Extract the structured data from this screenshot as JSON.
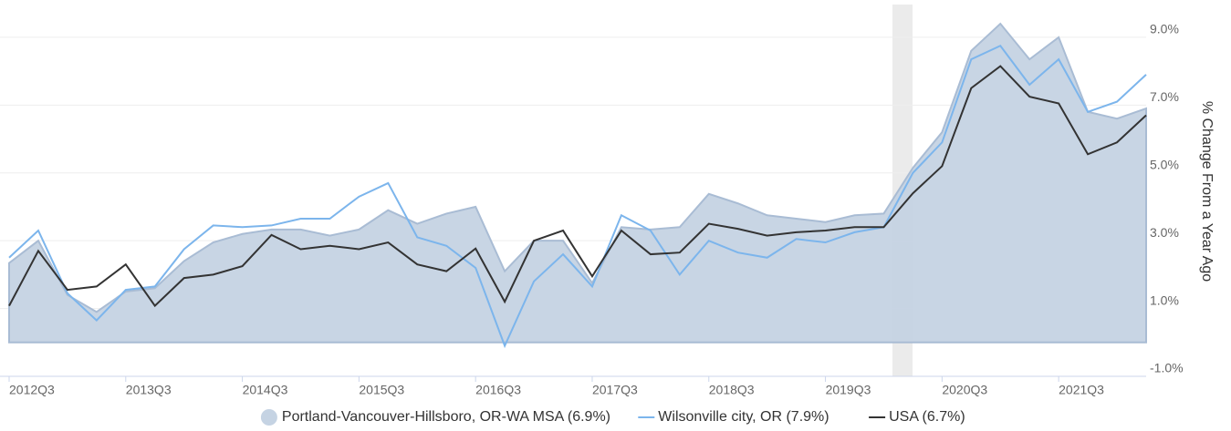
{
  "chart_data": {
    "type": "area_line",
    "y_label": "% Change From a Year Ago",
    "categories": [
      "2012Q3",
      null,
      null,
      null,
      "2013Q3",
      null,
      null,
      null,
      "2014Q3",
      null,
      null,
      null,
      "2015Q3",
      null,
      null,
      null,
      "2016Q3",
      null,
      null,
      null,
      "2017Q3",
      null,
      null,
      null,
      "2018Q3",
      null,
      null,
      null,
      "2019Q3",
      null,
      null,
      null,
      "2020Q3",
      null,
      null,
      null,
      "2021Q3",
      null,
      null,
      null
    ],
    "series": [
      {
        "name": "Portland-Vancouver-Hillsboro, OR-WA MSA (6.9%)",
        "style": "area",
        "color": "#c5d3e3",
        "values": [
          2.34,
          3.0,
          1.4,
          0.9,
          1.5,
          1.6,
          2.4,
          2.95,
          3.2,
          3.33,
          3.33,
          3.15,
          3.33,
          3.9,
          3.5,
          3.8,
          4.0,
          2.1,
          3.0,
          3.0,
          1.75,
          3.4,
          3.33,
          3.4,
          4.38,
          4.1,
          3.75,
          3.65,
          3.55,
          3.75,
          3.8,
          5.15,
          6.2,
          8.6,
          9.4,
          8.35,
          9.0,
          6.8,
          6.6,
          6.9
        ]
      },
      {
        "name": "Wilsonville city, OR (7.9%)",
        "style": "line",
        "color": "#7cb5ec",
        "values": [
          2.5,
          3.3,
          1.45,
          0.65,
          1.55,
          1.65,
          2.75,
          3.45,
          3.4,
          3.45,
          3.65,
          3.65,
          4.3,
          4.7,
          3.1,
          2.85,
          2.2,
          -0.1,
          1.8,
          2.6,
          1.65,
          3.75,
          3.3,
          2.0,
          3.0,
          2.65,
          2.5,
          3.05,
          2.95,
          3.25,
          3.4,
          5.0,
          5.9,
          8.35,
          8.75,
          7.6,
          8.35,
          6.8,
          7.1,
          7.9
        ]
      },
      {
        "name": "USA (6.7%)",
        "style": "line",
        "color": "#333333",
        "values": [
          1.08,
          2.7,
          1.55,
          1.65,
          2.3,
          1.08,
          1.9,
          2.0,
          2.25,
          3.17,
          2.75,
          2.85,
          2.75,
          2.95,
          2.3,
          2.1,
          2.77,
          1.2,
          3.0,
          3.3,
          1.95,
          3.3,
          2.6,
          2.65,
          3.5,
          3.35,
          3.15,
          3.25,
          3.3,
          3.4,
          3.4,
          4.4,
          5.2,
          7.5,
          8.15,
          7.25,
          7.05,
          5.55,
          5.9,
          6.7
        ]
      }
    ],
    "ylim": [
      -1,
      10.1
    ],
    "yticks": [
      {
        "value": 9,
        "label": "9.0%"
      },
      {
        "value": 7,
        "label": "7.0%"
      },
      {
        "value": 5,
        "label": "5.0%"
      },
      {
        "value": 3,
        "label": "3.0%"
      },
      {
        "value": 1,
        "label": "1.0%"
      },
      {
        "value": -1,
        "label": "-1.0%"
      }
    ],
    "grid": true,
    "y_axis_side": "right",
    "legend": "bottom"
  }
}
